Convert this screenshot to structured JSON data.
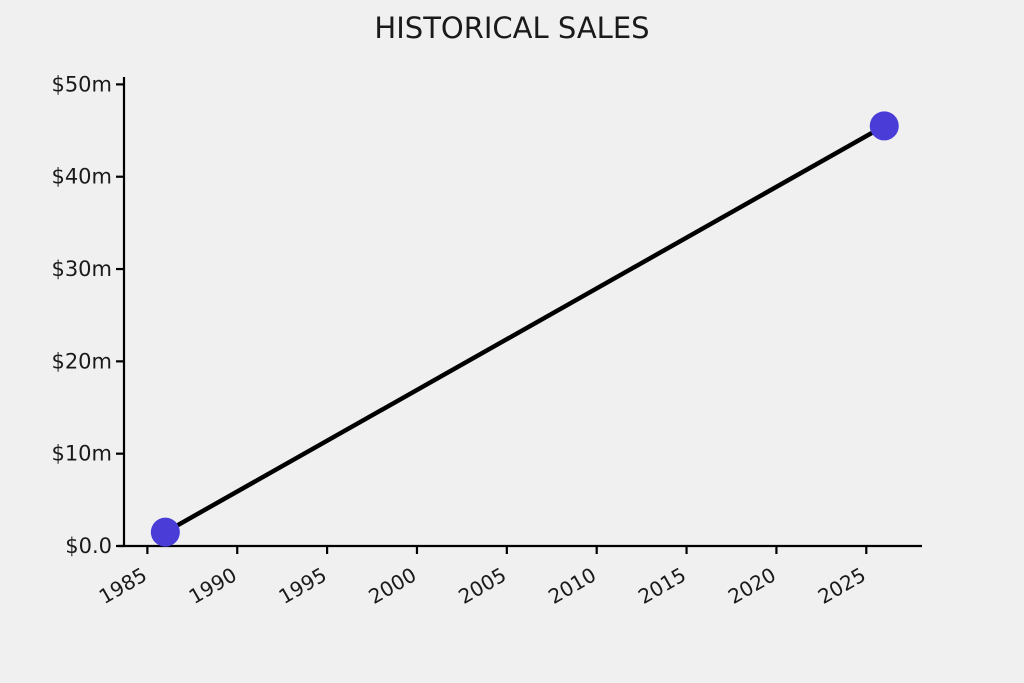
{
  "chart_data": {
    "type": "line",
    "title": "HISTORICAL SALES",
    "xlabel": "",
    "ylabel": "",
    "series": [
      {
        "name": "historical-sales",
        "points": [
          {
            "x": 1986,
            "y": 1.5
          },
          {
            "x": 2026,
            "y": 45.5
          }
        ]
      }
    ],
    "x_ticks": [
      {
        "value": 1985,
        "label": "1985"
      },
      {
        "value": 1990,
        "label": "1990"
      },
      {
        "value": 1995,
        "label": "1995"
      },
      {
        "value": 2000,
        "label": "2000"
      },
      {
        "value": 2005,
        "label": "2005"
      },
      {
        "value": 2010,
        "label": "2010"
      },
      {
        "value": 2015,
        "label": "2015"
      },
      {
        "value": 2020,
        "label": "2020"
      },
      {
        "value": 2025,
        "label": "2025"
      }
    ],
    "y_ticks": [
      {
        "value": 0,
        "label": "$0.0"
      },
      {
        "value": 10,
        "label": "$10m"
      },
      {
        "value": 20,
        "label": "$20m"
      },
      {
        "value": 30,
        "label": "$30m"
      },
      {
        "value": 40,
        "label": "$40m"
      },
      {
        "value": 50,
        "label": "$50m"
      }
    ],
    "x_tick_rotation_deg": 30,
    "xlim": [
      1983.7,
      2028.1
    ],
    "ylim": [
      0,
      50.8
    ],
    "grid": false,
    "legend": false,
    "colors": {
      "background": "#f0f0f0",
      "line": "#000000",
      "marker": "#4a3cd6",
      "axis": "#000000",
      "text": "#1a1a1a"
    }
  }
}
